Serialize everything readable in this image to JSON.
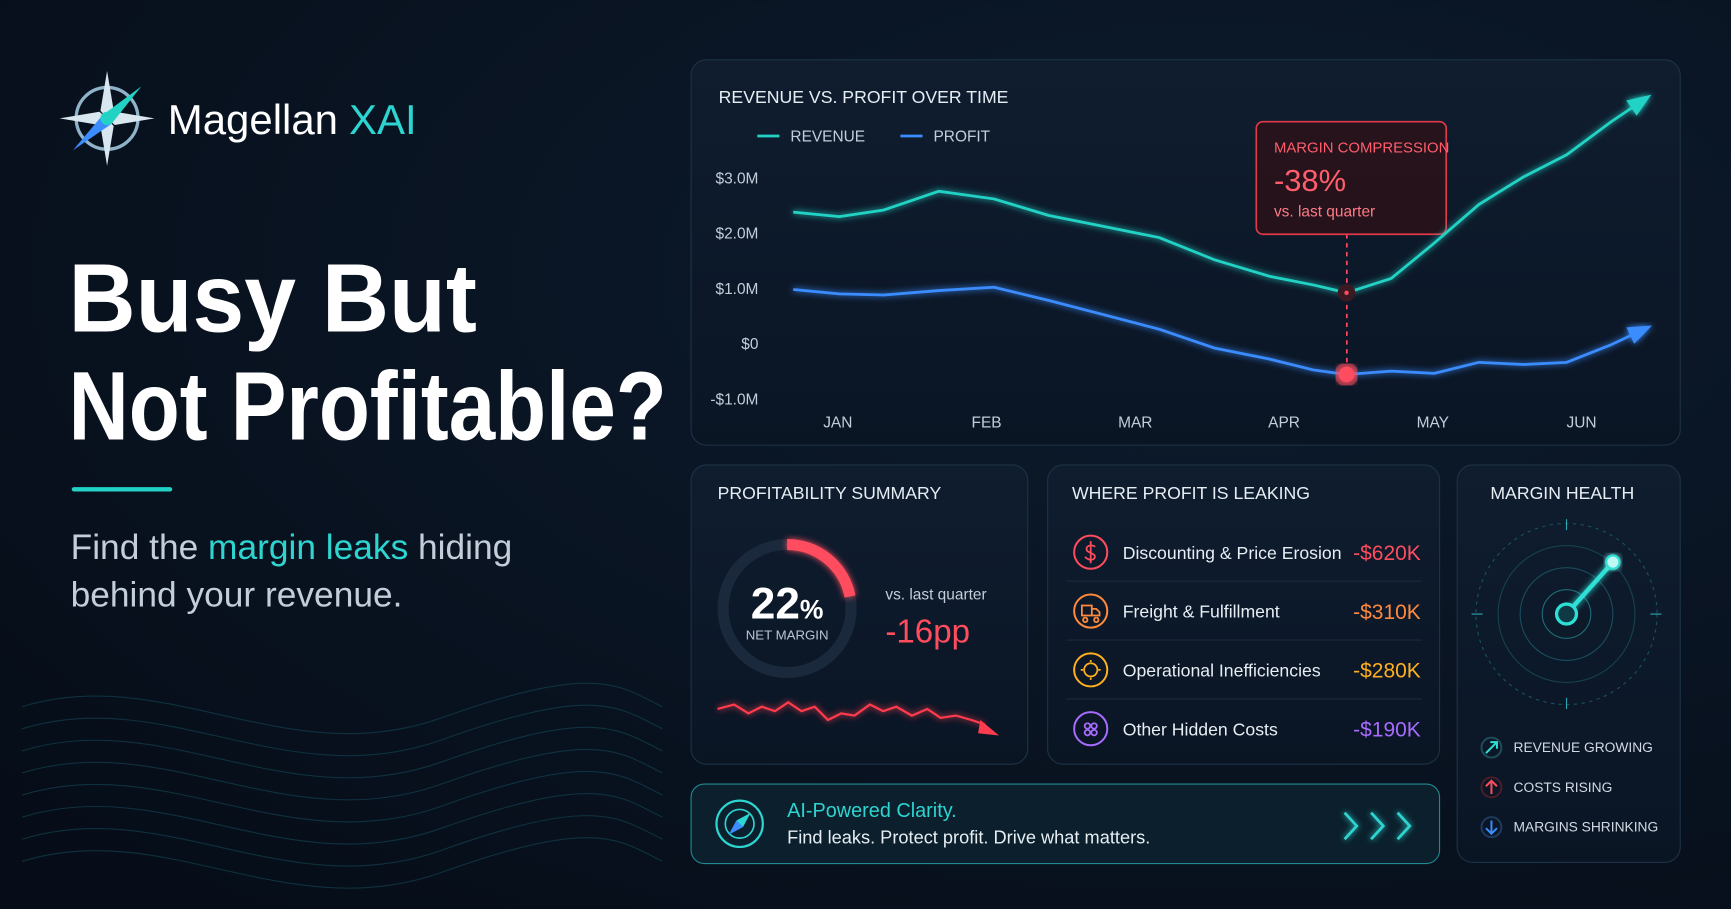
{
  "brand": {
    "name": "Magellan",
    "accent": "XAI"
  },
  "headline": [
    "Busy But",
    "Not Profitable?"
  ],
  "tagline": [
    "Find the ",
    "margin leaks",
    " hiding",
    "behind your revenue."
  ],
  "chart_data": {
    "type": "line",
    "title": "REVENUE VS. PROFIT OVER TIME",
    "x": [
      -0.3,
      0.01,
      0.31,
      0.68,
      1.05,
      1.42,
      1.79,
      2.16,
      2.53,
      2.9,
      3.2,
      3.42,
      3.72,
      4.01,
      4.31,
      4.61,
      4.9,
      5.2,
      5.42
    ],
    "series": [
      {
        "name": "REVENUE",
        "color": "#22d3c5",
        "values": [
          2380000,
          2300000,
          2420000,
          2760000,
          2620000,
          2320000,
          2120000,
          1920000,
          1520000,
          1220000,
          1060000,
          920000,
          1180000,
          1820000,
          2520000,
          3020000,
          3420000,
          4020000,
          4420000
        ]
      },
      {
        "name": "PROFIT",
        "color": "#3b8cff",
        "values": [
          980000,
          900000,
          880000,
          960000,
          1020000,
          780000,
          520000,
          260000,
          -80000,
          -280000,
          -480000,
          -560000,
          -500000,
          -540000,
          -340000,
          -380000,
          -340000,
          -20000,
          260000
        ]
      }
    ],
    "xlim": [
      -0.35,
      5.5
    ],
    "xticks": [
      {
        "value": 0,
        "label": "JAN"
      },
      {
        "value": 1,
        "label": "FEB"
      },
      {
        "value": 2,
        "label": "MAR"
      },
      {
        "value": 3,
        "label": "APR"
      },
      {
        "value": 4,
        "label": "MAY"
      },
      {
        "value": 5,
        "label": "JUN"
      }
    ],
    "ylim": [
      -1000000,
      4500000
    ],
    "yticks": [
      {
        "value": 3000000,
        "label": "$3.0M"
      },
      {
        "value": 2000000,
        "label": "$2.0M"
      },
      {
        "value": 1000000,
        "label": "$1.0M"
      },
      {
        "value": 0,
        "label": "$0"
      },
      {
        "value": -1000000,
        "label": "-$1.0M"
      }
    ],
    "grid": false,
    "annotation": {
      "title": "MARGIN COMPRESSION",
      "value": "-38%",
      "note": "vs. last quarter"
    }
  },
  "summary": {
    "title": "PROFITABILITY SUMMARY",
    "net_margin": 22,
    "unit": "%",
    "label": "NET MARGIN",
    "compare": "vs. last quarter",
    "change": "-16pp"
  },
  "leaks": {
    "title": "WHERE PROFIT IS LEAKING",
    "items": [
      {
        "label": "Discounting & Price Erosion",
        "value": "-$620K"
      },
      {
        "label": "Freight & Fulfillment",
        "value": "-$310K"
      },
      {
        "label": "Operational Inefficiencies",
        "value": "-$280K"
      },
      {
        "label": "Other Hidden Costs",
        "value": "-$190K"
      }
    ]
  },
  "health": {
    "title": "MARGIN HEALTH",
    "legend": [
      "REVENUE GROWING",
      "COSTS RISING",
      "MARGINS SHRINKING"
    ]
  },
  "banner": {
    "title": "AI-Powered Clarity.",
    "text": "Find leaks. Protect profit. Drive what matters."
  }
}
